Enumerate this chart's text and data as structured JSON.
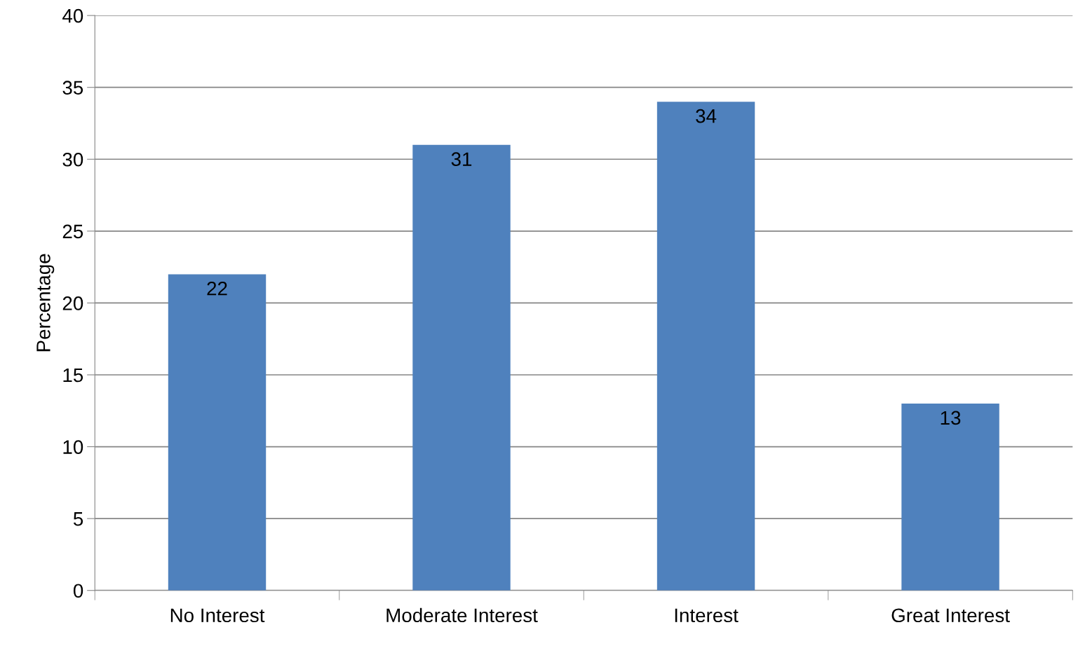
{
  "chart_data": {
    "type": "bar",
    "ylabel": "Percentage",
    "categories": [
      "No Interest",
      "Moderate Interest",
      "Interest",
      "Great Interest"
    ],
    "values": [
      22,
      31,
      34,
      13
    ],
    "color": "#4f81bd",
    "ylim": [
      0,
      40
    ],
    "yticks": [
      0,
      5,
      10,
      15,
      20,
      25,
      30,
      35,
      40
    ],
    "grid": "y",
    "data_labels": true
  }
}
